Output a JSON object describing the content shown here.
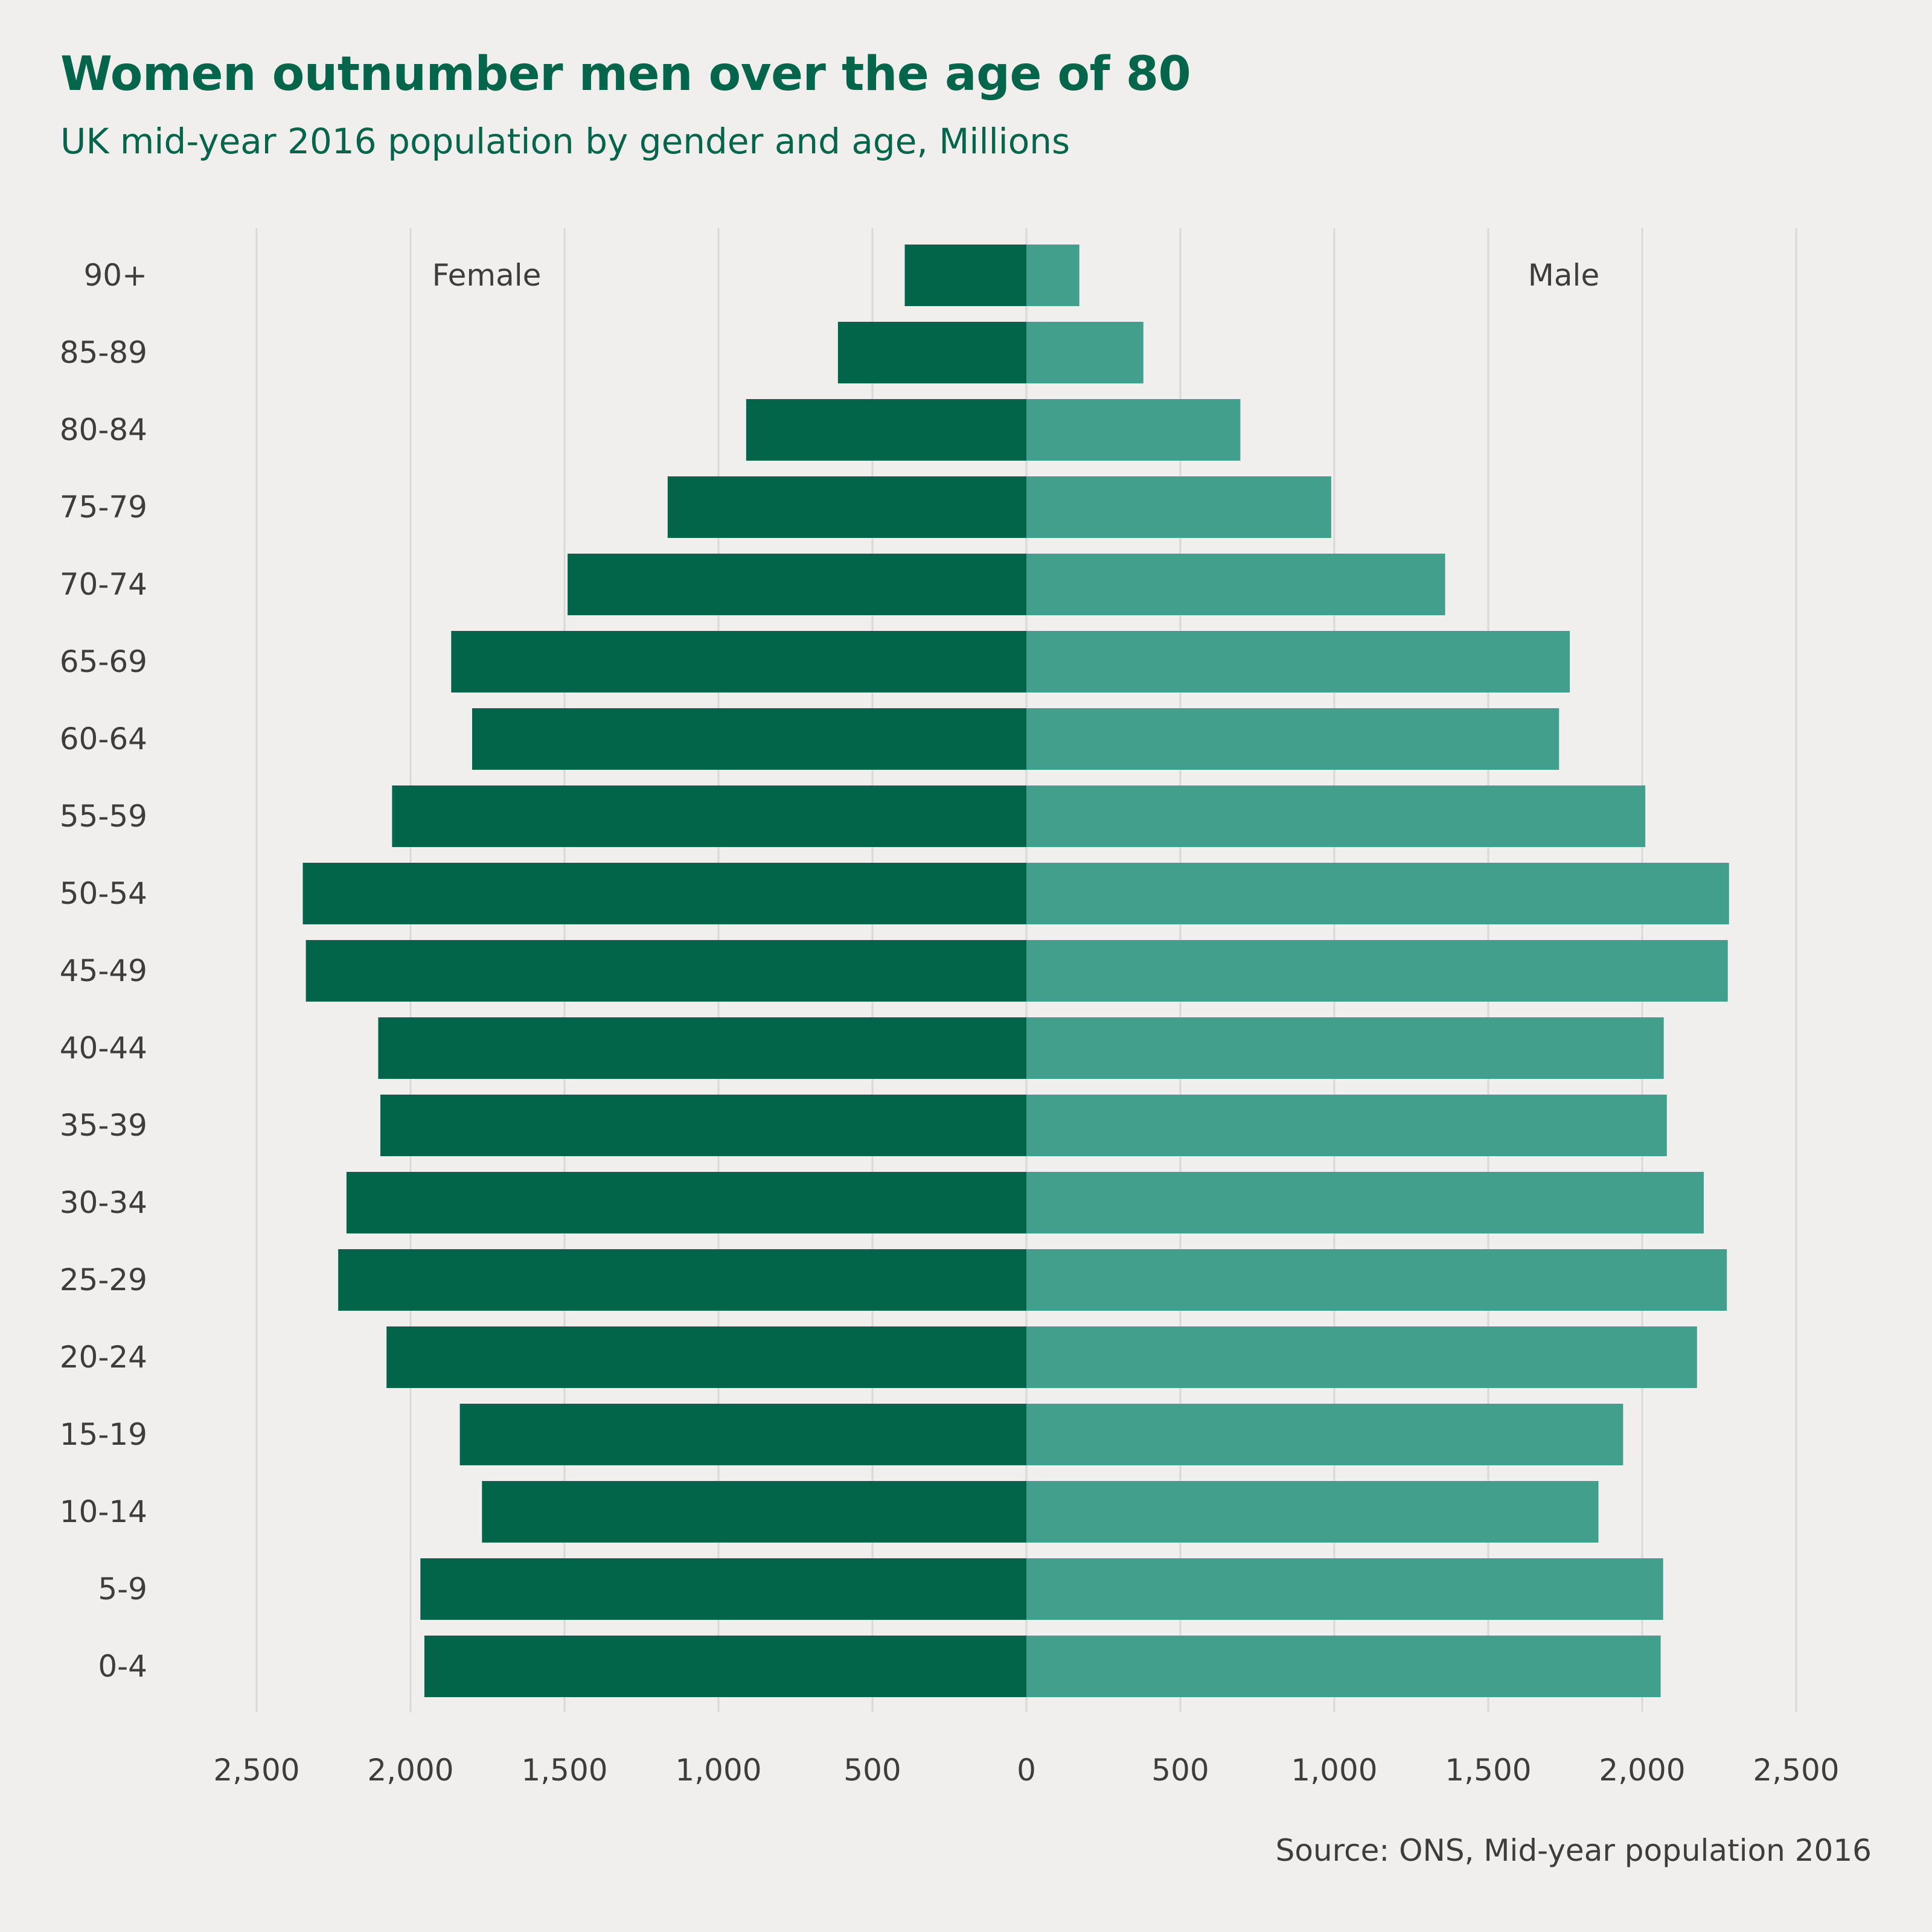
{
  "title": "Women outnumber men over the age of 80",
  "subtitle": "UK mid-year 2016 population by gender and age, Millions",
  "source": "Source: ONS, Mid-year population 2016",
  "colors": {
    "female": "#02654a",
    "male": "#429f8b",
    "background": "#f0efed",
    "grid": "#d9d8d6",
    "title": "#03654a",
    "text": "#3d3d3d"
  },
  "chart_data": {
    "type": "bar",
    "orientation": "horizontal",
    "layout": "population-pyramid",
    "title": "Women outnumber men over the age of 80",
    "subtitle": "UK mid-year 2016 population by gender and age, Millions",
    "categories": [
      "90+",
      "85-89",
      "80-84",
      "75-79",
      "70-74",
      "65-69",
      "60-64",
      "55-59",
      "50-54",
      "45-49",
      "40-44",
      "35-39",
      "30-34",
      "25-29",
      "20-24",
      "15-19",
      "10-14",
      "5-9",
      "0-4"
    ],
    "series": [
      {
        "name": "Female",
        "side": "left",
        "color": "#02654a",
        "values": [
          395,
          612,
          910,
          1165,
          1490,
          1868,
          1800,
          2060,
          2350,
          2340,
          2105,
          2098,
          2208,
          2235,
          2078,
          1840,
          1768,
          1968,
          1955
        ]
      },
      {
        "name": "Male",
        "side": "right",
        "color": "#429f8b",
        "values": [
          172,
          380,
          695,
          990,
          1360,
          1765,
          1730,
          2010,
          2282,
          2278,
          2070,
          2080,
          2200,
          2275,
          2178,
          1938,
          1858,
          2068,
          2060
        ]
      }
    ],
    "xlim": [
      -2500,
      2500
    ],
    "xticks": [
      -2500,
      -2000,
      -1500,
      -1000,
      -500,
      0,
      500,
      1000,
      1500,
      2000,
      2500
    ],
    "xtick_labels": [
      "2,500",
      "2,000",
      "1,500",
      "1,000",
      "500",
      "0",
      "500",
      "1,000",
      "1,500",
      "2,000",
      "2,500"
    ],
    "grid": "vertical",
    "legend": "inline-labels",
    "xlabel": "",
    "ylabel": ""
  }
}
